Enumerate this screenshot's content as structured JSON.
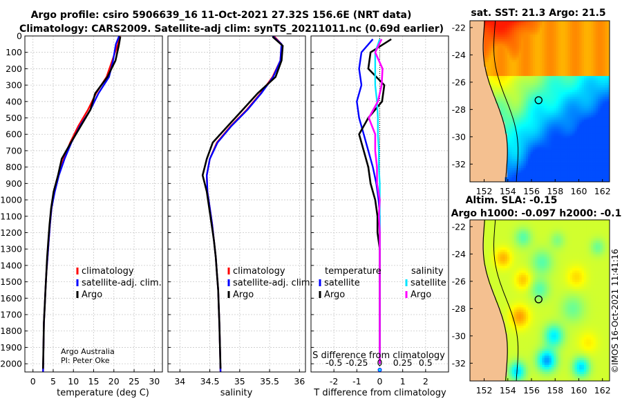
{
  "title": {
    "line1": "Argo profile: csiro 5906639_16 11-Oct-2021 27.32S 156.6E (NRT data)",
    "line2": "Climatology: CARS2009. Satellite-adj clim: synTS_20211011.nc (0.69d earlier)"
  },
  "credit": {
    "line1": "Argo Australia",
    "line2": "PI: Peter Oke"
  },
  "timestamp": "©IMOS 16-Oct-2021 11:41:16",
  "colors": {
    "climatology": "#ff0000",
    "satellite": "#0000ff",
    "argo": "#000000",
    "s_satellite": "#00e5ff",
    "s_argo": "#ff00ff"
  },
  "chart_data": [
    {
      "type": "line",
      "name": "temperature-profile",
      "xlabel": "temperature (deg C)",
      "ylabel": "depth",
      "xlim": [
        -2,
        32
      ],
      "ylim": [
        2050,
        0
      ],
      "xticks": [
        0,
        5,
        10,
        15,
        20,
        25,
        30
      ],
      "yticks": [
        0,
        100,
        200,
        300,
        400,
        500,
        600,
        700,
        800,
        900,
        1000,
        1100,
        1200,
        1300,
        1400,
        1500,
        1600,
        1700,
        1800,
        1900,
        2000
      ],
      "legend": {
        "position": "lower-right",
        "entries": [
          "climatology",
          "satellite-adj. clim.",
          "Argo"
        ]
      },
      "series": [
        {
          "name": "climatology",
          "color": "#ff0000",
          "x": [
            21.5,
            21.0,
            19.6,
            18.2,
            15.6,
            13.6,
            11.2,
            9.2,
            7.6,
            6.3,
            5.3,
            4.6,
            4.2,
            3.9,
            3.6,
            3.3,
            3.1,
            2.9,
            2.7,
            2.6,
            2.5
          ],
          "depth": [
            0,
            50,
            150,
            250,
            350,
            450,
            550,
            650,
            750,
            850,
            950,
            1050,
            1150,
            1250,
            1350,
            1450,
            1550,
            1650,
            1750,
            1900,
            2050
          ]
        },
        {
          "name": "satellite-adj. clim.",
          "color": "#0000ff",
          "x": [
            21.3,
            20.5,
            19.8,
            18.8,
            16.2,
            14.2,
            11.6,
            9.5,
            7.8,
            6.4,
            5.4,
            4.6,
            4.2,
            3.9,
            3.6,
            3.3,
            3.1,
            2.9,
            2.7,
            2.6,
            2.5
          ],
          "depth": [
            0,
            50,
            150,
            250,
            350,
            450,
            550,
            650,
            750,
            850,
            950,
            1050,
            1150,
            1250,
            1350,
            1450,
            1550,
            1650,
            1750,
            1900,
            2050
          ]
        },
        {
          "name": "Argo",
          "color": "#000000",
          "x": [
            21.6,
            21.2,
            20.4,
            18.4,
            15.4,
            14.2,
            11.8,
            9.4,
            7.1,
            6.2,
            5.1,
            4.5,
            4.1,
            3.8,
            3.5,
            3.3,
            3.1,
            2.9,
            2.7,
            2.6,
            2.5
          ],
          "depth": [
            5,
            60,
            150,
            250,
            350,
            450,
            550,
            650,
            750,
            850,
            950,
            1050,
            1150,
            1250,
            1350,
            1450,
            1550,
            1650,
            1750,
            1900,
            2030
          ]
        }
      ]
    },
    {
      "type": "line",
      "name": "salinity-profile",
      "xlabel": "salinity",
      "xlim": [
        33.8,
        36.1
      ],
      "ylim": [
        2050,
        0
      ],
      "xticks": [
        34,
        34.5,
        35,
        35.5,
        36
      ],
      "legend": {
        "position": "lower-right",
        "entries": [
          "climatology",
          "satellite-adj. clim.",
          "Argo"
        ]
      },
      "series": [
        {
          "name": "climatology",
          "color": "#ff0000",
          "x": [
            35.57,
            35.7,
            35.68,
            35.55,
            35.35,
            35.12,
            34.85,
            34.62,
            34.5,
            34.45,
            34.46,
            34.5,
            34.54,
            34.57,
            34.6,
            34.62,
            34.64,
            34.65,
            34.66,
            34.67,
            34.68
          ],
          "depth": [
            0,
            50,
            150,
            250,
            350,
            450,
            550,
            650,
            750,
            850,
            950,
            1050,
            1150,
            1250,
            1350,
            1450,
            1550,
            1650,
            1750,
            1900,
            2050
          ]
        },
        {
          "name": "satellite-adj. clim.",
          "color": "#0000ff",
          "x": [
            35.55,
            35.7,
            35.68,
            35.56,
            35.36,
            35.13,
            34.86,
            34.63,
            34.5,
            34.45,
            34.46,
            34.5,
            34.54,
            34.57,
            34.6,
            34.62,
            34.64,
            34.65,
            34.66,
            34.67,
            34.68
          ],
          "depth": [
            0,
            50,
            150,
            250,
            350,
            450,
            550,
            650,
            750,
            850,
            950,
            1050,
            1150,
            1250,
            1350,
            1450,
            1550,
            1650,
            1750,
            1900,
            2050
          ]
        },
        {
          "name": "Argo",
          "color": "#000000",
          "x": [
            35.55,
            35.72,
            35.7,
            35.6,
            35.3,
            35.05,
            34.8,
            34.55,
            34.45,
            34.38,
            34.45,
            34.49,
            34.53,
            34.57,
            34.6,
            34.62,
            34.64,
            34.65,
            34.66,
            34.67,
            34.68
          ],
          "depth": [
            5,
            60,
            150,
            250,
            350,
            450,
            550,
            650,
            750,
            850,
            950,
            1050,
            1150,
            1250,
            1350,
            1450,
            1550,
            1650,
            1750,
            1900,
            2030
          ]
        }
      ]
    },
    {
      "type": "line",
      "name": "difference-profile",
      "xlabel": "T difference from climatology",
      "x2label": "S difference from climatology",
      "xlim": [
        -3,
        3
      ],
      "ylim": [
        2050,
        0
      ],
      "xticks": [
        -2,
        -1,
        0,
        1,
        2
      ],
      "x2ticks": [
        -0.5,
        -0.25,
        0,
        0.25,
        0.5
      ],
      "legend": {
        "position": "lower",
        "temperature_header": "temperature",
        "salinity_header": "salinity",
        "entries": [
          "satellite",
          "Argo",
          "satellite",
          "Argo"
        ]
      },
      "series": [
        {
          "name": "T satellite",
          "color": "#0000ff",
          "x": [
            -0.3,
            -0.8,
            -0.9,
            -0.8,
            -1.0,
            -0.9,
            -0.7,
            -0.5,
            -0.3,
            -0.15,
            -0.05,
            0,
            0,
            0,
            0,
            0,
            0,
            0,
            0,
            0
          ],
          "depth": [
            20,
            100,
            200,
            300,
            400,
            500,
            600,
            700,
            800,
            900,
            1000,
            1100,
            1200,
            1300,
            1400,
            1500,
            1600,
            1700,
            1800,
            2000
          ]
        },
        {
          "name": "T Argo",
          "color": "#000000",
          "x": [
            0.5,
            -0.4,
            -0.5,
            0.2,
            0.1,
            -0.5,
            -0.9,
            -0.7,
            -0.5,
            -0.4,
            -0.2,
            -0.1,
            -0.1,
            0.0,
            0.0,
            0.0,
            0.0,
            0.0,
            0.0,
            0.0
          ],
          "depth": [
            20,
            100,
            200,
            300,
            400,
            500,
            600,
            700,
            800,
            900,
            1000,
            1100,
            1200,
            1300,
            1400,
            1500,
            1600,
            1700,
            1800,
            2000
          ]
        },
        {
          "name": "S satellite",
          "color": "#00e5ff",
          "x": [
            0.0,
            -0.05,
            -0.05,
            -0.05,
            -0.03,
            -0.02,
            -0.02,
            -0.01,
            -0.01,
            0,
            0,
            0,
            0,
            0,
            0,
            0,
            0,
            0,
            0,
            0
          ],
          "depth": [
            20,
            100,
            200,
            300,
            400,
            500,
            600,
            700,
            800,
            900,
            1000,
            1100,
            1200,
            1300,
            1400,
            1500,
            1600,
            1700,
            1800,
            2000
          ]
        },
        {
          "name": "S Argo",
          "color": "#ff00ff",
          "x": [
            0.02,
            -0.05,
            0.03,
            0.02,
            -0.02,
            -0.12,
            -0.05,
            -0.05,
            -0.03,
            -0.03,
            0,
            -0.01,
            0,
            0,
            0,
            0,
            0,
            0,
            0,
            0
          ],
          "depth": [
            20,
            100,
            200,
            300,
            400,
            500,
            600,
            700,
            800,
            900,
            1000,
            1100,
            1200,
            1300,
            1400,
            1500,
            1600,
            1700,
            1800,
            2000
          ]
        }
      ]
    },
    {
      "type": "heatmap",
      "name": "sst-map",
      "title": "sat. SST: 21.3 Argo: 21.5",
      "xticks": [
        152,
        154,
        156,
        158,
        160,
        162
      ],
      "yticks": [
        -22,
        -24,
        -26,
        -28,
        -30,
        -32
      ],
      "xlim": [
        150.8,
        162.6
      ],
      "ylim": [
        -33.3,
        -21.5
      ],
      "float_position": {
        "lon": 156.6,
        "lat": -27.32
      }
    },
    {
      "type": "heatmap",
      "name": "sla-map",
      "title_line1": "Altim. SLA: -0.15",
      "title_line2": "Argo h1000: -0.097 h2000: -0.1",
      "xticks": [
        152,
        154,
        156,
        158,
        160,
        162
      ],
      "yticks": [
        -22,
        -24,
        -26,
        -28,
        -30,
        -32
      ],
      "xlim": [
        150.8,
        162.6
      ],
      "ylim": [
        -33.3,
        -21.5
      ],
      "float_position": {
        "lon": 156.6,
        "lat": -27.32
      }
    }
  ]
}
